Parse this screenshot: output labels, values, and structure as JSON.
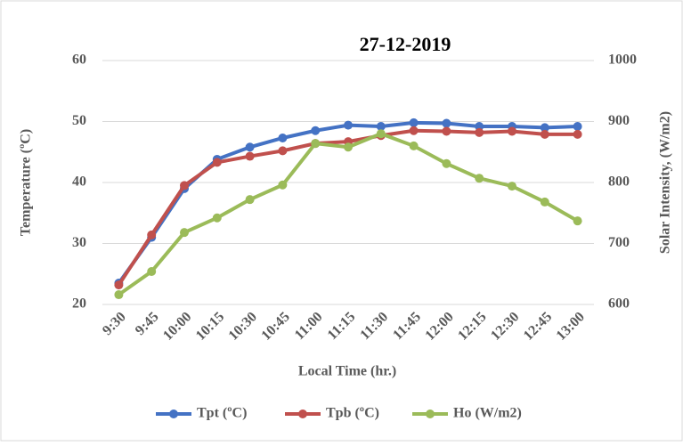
{
  "chart_data": {
    "type": "line",
    "title": "27-12-2019",
    "x_label": "Local Time (hr.)",
    "y_label": "Temperature  (ºC)",
    "y2_label": "Solar Intensity, (W/m2)",
    "categories": [
      "9:30",
      "9:45",
      "10:00",
      "10:15",
      "10:30",
      "10:45",
      "11:00",
      "11:15",
      "11:30",
      "11:45",
      "12:00",
      "12:15",
      "12:30",
      "12:45",
      "13:00"
    ],
    "series": [
      {
        "name": "Tpt (ºC)",
        "color": "#4472c4",
        "values": [
          23.5,
          31,
          39,
          43.8,
          45.8,
          47.3,
          48.5,
          49.4,
          49.2,
          49.8,
          49.7,
          49.2,
          49.2,
          49.0,
          49.2
        ]
      },
      {
        "name": "Tpb (ºC)",
        "color": "#c0504d",
        "values": [
          23.2,
          31.4,
          39.5,
          43.3,
          44.3,
          45.2,
          46.4,
          46.7,
          47.7,
          48.5,
          48.4,
          48.2,
          48.4,
          47.9,
          47.9
        ]
      },
      {
        "name": "Ho (W/m2)",
        "color": "#9bbb59",
        "axis": "y2",
        "values": [
          616,
          654,
          718,
          742,
          772,
          796,
          864,
          858,
          880,
          860,
          831,
          807,
          794,
          768,
          737
        ]
      }
    ],
    "ylim": [
      20,
      60
    ],
    "yticks": [
      20,
      30,
      40,
      50,
      60
    ],
    "y2lim": [
      600,
      1000
    ],
    "y2ticks": [
      600,
      700,
      800,
      900,
      1000
    ],
    "grid": true,
    "legend": "bottom"
  }
}
